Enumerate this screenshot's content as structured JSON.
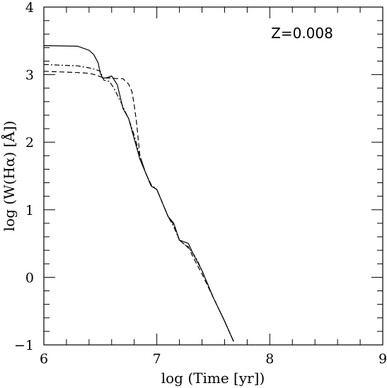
{
  "chart_data": {
    "type": "line",
    "xlabel": "log (Time [yr])",
    "ylabel": "log (W(Hα) [Å])",
    "annotation": "Z=0.008",
    "xlim": [
      6,
      9
    ],
    "ylim": [
      -1,
      4
    ],
    "x_ticks": [
      6,
      7,
      8,
      9
    ],
    "x_tick_labels": [
      "6",
      "7",
      "8",
      "9"
    ],
    "y_ticks": [
      -1,
      0,
      1,
      2,
      3,
      4
    ],
    "y_tick_labels": [
      "−1",
      "0",
      "1",
      "2",
      "3",
      "4"
    ],
    "x_minor_step": 0.2,
    "y_minor_step": 0.2,
    "grid": false,
    "series": [
      {
        "style": "solid",
        "x": [
          6.0,
          6.3,
          6.4,
          6.44,
          6.48,
          6.5,
          6.52,
          6.55,
          6.6,
          6.65,
          6.7,
          6.75,
          6.8,
          6.85,
          6.9,
          6.95,
          7.0,
          7.05,
          7.1,
          7.15,
          7.2,
          7.25,
          7.28,
          7.32,
          7.4,
          7.5,
          7.6,
          7.68
        ],
        "y": [
          3.43,
          3.42,
          3.36,
          3.3,
          3.18,
          3.02,
          2.95,
          2.95,
          2.98,
          2.85,
          2.5,
          2.35,
          2.05,
          1.75,
          1.55,
          1.35,
          1.3,
          1.1,
          0.9,
          0.8,
          0.55,
          0.52,
          0.5,
          0.35,
          0.1,
          -0.3,
          -0.65,
          -0.95
        ]
      },
      {
        "style": "dashed",
        "x": [
          6.0,
          6.3,
          6.4,
          6.45,
          6.5,
          6.55,
          6.6,
          6.65,
          6.7,
          6.75,
          6.78,
          6.8,
          6.82,
          6.85,
          6.9,
          6.95,
          7.0,
          7.05,
          7.1,
          7.15,
          7.2,
          7.25,
          7.28,
          7.32,
          7.4,
          7.5,
          7.6,
          7.68
        ],
        "y": [
          3.05,
          3.03,
          3.02,
          3.0,
          2.97,
          2.95,
          2.95,
          2.94,
          2.94,
          2.86,
          2.75,
          2.55,
          2.3,
          1.8,
          1.55,
          1.35,
          1.3,
          1.1,
          0.9,
          0.78,
          0.55,
          0.48,
          0.45,
          0.3,
          0.05,
          -0.3,
          -0.65,
          -0.95
        ]
      },
      {
        "style": "dash-dot",
        "x": [
          6.0,
          6.3,
          6.4,
          6.45,
          6.5,
          6.53,
          6.58,
          6.62,
          6.68,
          6.72,
          6.75,
          6.8,
          6.85,
          6.9,
          6.95,
          7.0,
          7.05,
          7.1,
          7.15,
          7.2,
          7.25,
          7.3,
          7.35,
          7.4,
          7.5,
          7.6,
          7.68
        ],
        "y": [
          3.15,
          3.13,
          3.1,
          3.08,
          3.05,
          2.92,
          2.9,
          2.8,
          2.6,
          2.45,
          2.35,
          2.1,
          1.8,
          1.55,
          1.37,
          1.3,
          1.1,
          0.9,
          0.75,
          0.55,
          0.48,
          0.4,
          0.28,
          0.1,
          -0.3,
          -0.65,
          -0.95
        ]
      }
    ]
  }
}
